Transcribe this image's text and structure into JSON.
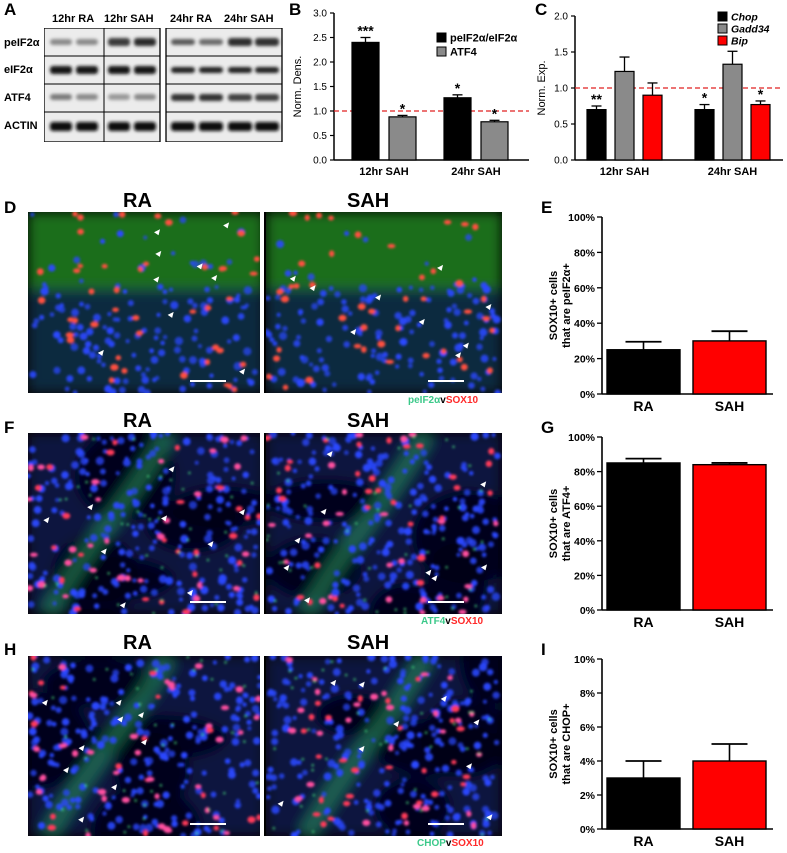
{
  "panel_letters": {
    "A": "A",
    "B": "B",
    "C": "C",
    "D": "D",
    "E": "E",
    "F": "F",
    "G": "G",
    "H": "H",
    "I": "I"
  },
  "blot": {
    "lanes": [
      "12hr RA",
      "12hr SAH",
      "24hr RA",
      "24hr SAH"
    ],
    "rows": [
      "peIF2α",
      "eIF2α",
      "ATF4",
      "ACTIN"
    ]
  },
  "micro": {
    "left_title": "RA",
    "right_title": "SAH",
    "captions": {
      "D": {
        "a": "peIF2α",
        "v": "v",
        "b": "SOX10"
      },
      "F": {
        "a": "ATF4",
        "v": "v",
        "b": "SOX10"
      },
      "H": {
        "a": "CHOP",
        "v": "v",
        "b": "SOX10"
      }
    }
  },
  "colors": {
    "black": "#000000",
    "gray": "#8a8a8a",
    "red": "#ff0000",
    "dash": "#e02020"
  },
  "chart_data": [
    {
      "id": "B",
      "type": "bar",
      "ylabel": "Norm. Dens.",
      "ylim": [
        0.0,
        3.0
      ],
      "yticks": [
        0.0,
        0.5,
        1.0,
        1.5,
        2.0,
        2.5,
        3.0
      ],
      "categories": [
        "12hr SAH",
        "24hr SAH"
      ],
      "series": [
        {
          "name": "peIF2α/eIF2α",
          "color": "#000000",
          "values": [
            2.4,
            1.27
          ],
          "errors": [
            0.1,
            0.06
          ],
          "sig": [
            "***",
            "*"
          ]
        },
        {
          "name": "ATF4",
          "color": "#8a8a8a",
          "values": [
            0.88,
            0.78
          ],
          "errors": [
            0.03,
            0.03
          ],
          "sig": [
            "*",
            "*"
          ]
        }
      ],
      "reference_line": 1.0,
      "legend_position": "top-right"
    },
    {
      "id": "C",
      "type": "bar",
      "ylabel": "Norm. Exp.",
      "ylim": [
        0.0,
        2.0
      ],
      "yticks": [
        0.0,
        0.5,
        1.0,
        1.5,
        2.0
      ],
      "categories": [
        "12hr SAH",
        "24hr SAH"
      ],
      "series": [
        {
          "name": "Chop",
          "color": "#000000",
          "values": [
            0.7,
            0.7
          ],
          "errors": [
            0.05,
            0.07
          ],
          "sig": [
            "**",
            "*"
          ]
        },
        {
          "name": "Gadd34",
          "color": "#8a8a8a",
          "values": [
            1.23,
            1.33
          ],
          "errors": [
            0.2,
            0.18
          ],
          "sig": [
            "",
            ""
          ]
        },
        {
          "name": "Bip",
          "color": "#ff0000",
          "values": [
            0.9,
            0.77
          ],
          "errors": [
            0.17,
            0.05
          ],
          "sig": [
            "",
            "*"
          ]
        }
      ],
      "reference_line": 1.0,
      "legend_position": "top-right"
    },
    {
      "id": "E",
      "type": "bar",
      "ylabel_lines": [
        "SOX10+ cells",
        "that are peIF2α+"
      ],
      "ylim": [
        0,
        100
      ],
      "yticks": [
        0,
        20,
        40,
        60,
        80,
        100
      ],
      "ytick_labels": [
        "0%",
        "20%",
        "40%",
        "60%",
        "80%",
        "100%"
      ],
      "categories": [
        "RA",
        "SAH"
      ],
      "values": [
        25,
        30
      ],
      "errors": [
        4.5,
        5.5
      ],
      "colors": [
        "#000000",
        "#ff0000"
      ]
    },
    {
      "id": "G",
      "type": "bar",
      "ylabel_lines": [
        "SOX10+ cells",
        "that are ATF4+"
      ],
      "ylim": [
        0,
        100
      ],
      "yticks": [
        0,
        20,
        40,
        60,
        80,
        100
      ],
      "ytick_labels": [
        "0%",
        "20%",
        "40%",
        "60%",
        "80%",
        "100%"
      ],
      "categories": [
        "RA",
        "SAH"
      ],
      "values": [
        85,
        84
      ],
      "errors": [
        2.5,
        1
      ],
      "colors": [
        "#000000",
        "#ff0000"
      ]
    },
    {
      "id": "I",
      "type": "bar",
      "ylabel_lines": [
        "SOX10+ cells",
        "that are CHOP+"
      ],
      "ylim": [
        0,
        10
      ],
      "yticks": [
        0,
        2,
        4,
        6,
        8,
        10
      ],
      "ytick_labels": [
        "0%",
        "2%",
        "4%",
        "6%",
        "8%",
        "10%"
      ],
      "categories": [
        "RA",
        "SAH"
      ],
      "values": [
        3,
        4
      ],
      "errors": [
        1,
        1
      ],
      "colors": [
        "#000000",
        "#ff0000"
      ]
    }
  ]
}
